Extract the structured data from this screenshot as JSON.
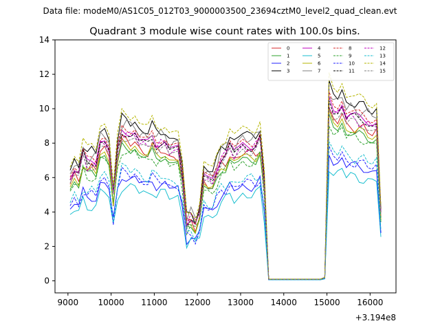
{
  "chart_data": {
    "type": "line",
    "suptitle": "Data file: modeM0/AS1C05_012T03_9000003500_23694cztM0_level2_quad_clean.evt",
    "title": "Quadrant 3 module wise count rates with 100.0s bins.",
    "xlabel": "",
    "ylabel": "",
    "x_offset_label": "+3.194e8",
    "xlim": [
      8700,
      16600
    ],
    "ylim": [
      -0.7,
      14
    ],
    "xticks": [
      9000,
      10000,
      11000,
      12000,
      13000,
      14000,
      15000,
      16000
    ],
    "yticks": [
      0,
      2,
      4,
      6,
      8,
      10,
      12,
      14
    ],
    "legend_position": "upper-right",
    "x": [
      9050,
      9150,
      9250,
      9350,
      9450,
      9550,
      9650,
      9750,
      9850,
      9950,
      10050,
      10150,
      10250,
      10350,
      10450,
      10550,
      10650,
      10750,
      10850,
      10950,
      11050,
      11150,
      11250,
      11350,
      11450,
      11550,
      11650,
      11750,
      11850,
      11950,
      12050,
      12150,
      12250,
      12350,
      12450,
      12550,
      12650,
      12750,
      12850,
      12950,
      13050,
      13150,
      13250,
      13350,
      13450,
      13550,
      13650,
      13750,
      13850,
      13950,
      14050,
      14150,
      14250,
      14350,
      14450,
      14550,
      14650,
      14750,
      14850,
      14950,
      15050,
      15150,
      15250,
      15350,
      15450,
      15550,
      15650,
      15750,
      15850,
      15950,
      16050,
      16150,
      16250
    ],
    "base_profile": [
      0.63,
      0.71,
      0.7,
      0.8,
      0.73,
      0.77,
      0.76,
      0.87,
      0.88,
      0.85,
      0.55,
      0.8,
      0.95,
      0.96,
      0.92,
      0.92,
      0.9,
      0.9,
      0.86,
      0.9,
      0.88,
      0.88,
      0.86,
      0.83,
      0.86,
      0.84,
      0.65,
      0.38,
      0.42,
      0.35,
      0.42,
      0.68,
      0.66,
      0.62,
      0.7,
      0.8,
      0.8,
      0.84,
      0.82,
      0.86,
      0.86,
      0.84,
      0.86,
      0.87,
      0.89,
      0.6,
      0.01,
      0.01,
      0.01,
      0.01,
      0.01,
      0.01,
      0.01,
      0.01,
      0.01,
      0.01,
      0.01,
      0.01,
      0.01,
      0.02,
      1.15,
      1.1,
      1.07,
      1.1,
      1.05,
      1.07,
      1.03,
      1.02,
      1.04,
      1.01,
      0.97,
      1.0,
      0.45
    ],
    "series": [
      {
        "name": "0",
        "color": "#d62728",
        "style": "solid",
        "scale": 8.6,
        "phase": 0.3
      },
      {
        "name": "1",
        "color": "#2ca02c",
        "style": "solid",
        "scale": 8.2,
        "phase": 1.1
      },
      {
        "name": "2",
        "color": "#1f1fff",
        "style": "solid",
        "scale": 6.4,
        "phase": 2.0
      },
      {
        "name": "3",
        "color": "#000000",
        "style": "solid",
        "scale": 9.9,
        "phase": 0.7
      },
      {
        "name": "4",
        "color": "#bf00bf",
        "style": "solid",
        "scale": 9.2,
        "phase": 1.6
      },
      {
        "name": "5",
        "color": "#17becf",
        "style": "solid",
        "scale": 5.8,
        "phase": 2.6
      },
      {
        "name": "6",
        "color": "#b5b500",
        "style": "solid",
        "scale": 8.4,
        "phase": 0.9
      },
      {
        "name": "7",
        "color": "#7f7f7f",
        "style": "solid",
        "scale": 9.6,
        "phase": 3.1
      },
      {
        "name": "8",
        "color": "#d62728",
        "style": "dashed",
        "scale": 9.4,
        "phase": 1.4
      },
      {
        "name": "9",
        "color": "#2ca02c",
        "style": "dashed",
        "scale": 8.0,
        "phase": 2.3
      },
      {
        "name": "10",
        "color": "#1f1fff",
        "style": "dashed",
        "scale": 6.6,
        "phase": 0.5
      },
      {
        "name": "11",
        "color": "#000000",
        "style": "dashed",
        "scale": 9.1,
        "phase": 1.9
      },
      {
        "name": "12",
        "color": "#bf00bf",
        "style": "dashed",
        "scale": 9.0,
        "phase": 2.8
      },
      {
        "name": "13",
        "color": "#17becf",
        "style": "dashed",
        "scale": 6.9,
        "phase": 0.2
      },
      {
        "name": "14",
        "color": "#b5b500",
        "style": "dashed",
        "scale": 10.3,
        "phase": 1.2
      },
      {
        "name": "15",
        "color": "#7f7f7f",
        "style": "dashed",
        "scale": 8.8,
        "phase": 2.1
      }
    ],
    "grid": false
  }
}
